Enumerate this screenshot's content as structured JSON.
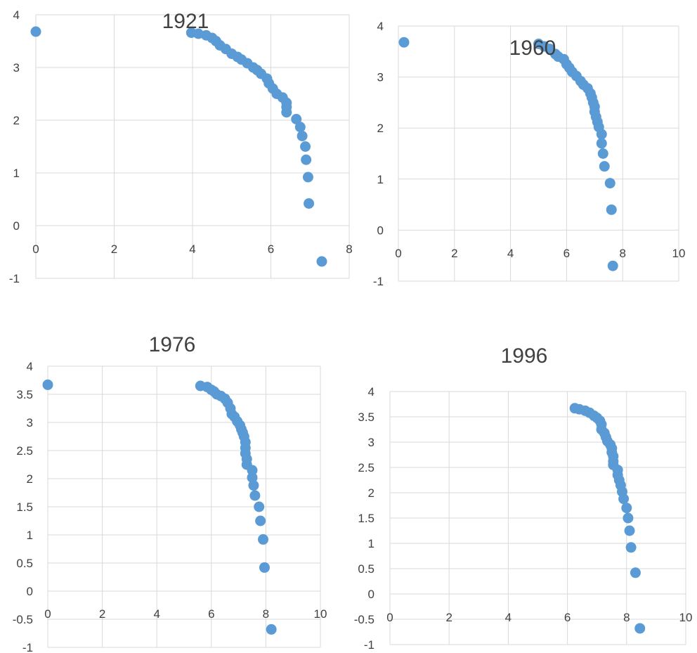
{
  "chart_data": [
    {
      "type": "scatter",
      "title": "1921",
      "xlim": [
        0,
        8
      ],
      "ylim": [
        -1,
        4
      ],
      "x_ticks": [
        "0",
        "2",
        "4",
        "6",
        "8"
      ],
      "y_ticks": [
        "-1",
        "0",
        "1",
        "2",
        "3",
        "4"
      ],
      "grid": true,
      "color": "#5b9bd5",
      "points": [
        [
          0,
          3.68
        ],
        [
          3.97,
          3.66
        ],
        [
          4.15,
          3.64
        ],
        [
          4.35,
          3.61
        ],
        [
          4.5,
          3.56
        ],
        [
          4.6,
          3.5
        ],
        [
          4.7,
          3.42
        ],
        [
          4.85,
          3.35
        ],
        [
          5.0,
          3.26
        ],
        [
          5.15,
          3.2
        ],
        [
          5.25,
          3.15
        ],
        [
          5.4,
          3.08
        ],
        [
          5.55,
          3.0
        ],
        [
          5.65,
          2.95
        ],
        [
          5.75,
          2.88
        ],
        [
          5.9,
          2.79
        ],
        [
          5.95,
          2.7
        ],
        [
          6.05,
          2.6
        ],
        [
          6.15,
          2.5
        ],
        [
          6.3,
          2.43
        ],
        [
          6.4,
          2.33
        ],
        [
          6.4,
          2.25
        ],
        [
          6.4,
          2.15
        ],
        [
          6.65,
          2.02
        ],
        [
          6.75,
          1.87
        ],
        [
          6.8,
          1.7
        ],
        [
          6.88,
          1.5
        ],
        [
          6.9,
          1.25
        ],
        [
          6.95,
          0.92
        ],
        [
          6.97,
          0.42
        ],
        [
          7.3,
          -0.68
        ]
      ]
    },
    {
      "type": "scatter",
      "title": "1960",
      "xlim": [
        0,
        10
      ],
      "ylim": [
        -1,
        4
      ],
      "x_ticks": [
        "0",
        "2",
        "4",
        "6",
        "8",
        "10"
      ],
      "y_ticks": [
        "-1",
        "0",
        "1",
        "2",
        "3",
        "4"
      ],
      "grid": true,
      "color": "#5b9bd5",
      "points": [
        [
          0.2,
          3.68
        ],
        [
          5.0,
          3.65
        ],
        [
          5.2,
          3.6
        ],
        [
          5.4,
          3.55
        ],
        [
          5.6,
          3.45
        ],
        [
          5.7,
          3.4
        ],
        [
          5.9,
          3.35
        ],
        [
          6.0,
          3.25
        ],
        [
          6.1,
          3.18
        ],
        [
          6.2,
          3.1
        ],
        [
          6.35,
          3.02
        ],
        [
          6.5,
          2.92
        ],
        [
          6.6,
          2.85
        ],
        [
          6.75,
          2.78
        ],
        [
          6.85,
          2.68
        ],
        [
          6.9,
          2.6
        ],
        [
          6.95,
          2.5
        ],
        [
          7.0,
          2.42
        ],
        [
          7.0,
          2.32
        ],
        [
          7.05,
          2.22
        ],
        [
          7.1,
          2.12
        ],
        [
          7.15,
          2.02
        ],
        [
          7.25,
          1.88
        ],
        [
          7.25,
          1.7
        ],
        [
          7.3,
          1.5
        ],
        [
          7.35,
          1.25
        ],
        [
          7.55,
          0.92
        ],
        [
          7.6,
          0.4
        ],
        [
          7.65,
          -0.7
        ]
      ]
    },
    {
      "type": "scatter",
      "title": "1976",
      "xlim": [
        0,
        10
      ],
      "ylim": [
        -1,
        4
      ],
      "x_ticks": [
        "0",
        "2",
        "4",
        "6",
        "8",
        "10"
      ],
      "y_ticks": [
        "-1",
        "-0.5",
        "0",
        "0.5",
        "1",
        "1.5",
        "2",
        "2.5",
        "3",
        "3.5",
        "4"
      ],
      "grid": true,
      "color": "#5b9bd5",
      "points": [
        [
          0,
          3.67
        ],
        [
          5.6,
          3.65
        ],
        [
          5.85,
          3.63
        ],
        [
          6.0,
          3.58
        ],
        [
          6.1,
          3.55
        ],
        [
          6.2,
          3.5
        ],
        [
          6.35,
          3.47
        ],
        [
          6.5,
          3.42
        ],
        [
          6.6,
          3.35
        ],
        [
          6.7,
          3.25
        ],
        [
          6.75,
          3.15
        ],
        [
          6.85,
          3.1
        ],
        [
          6.95,
          3.02
        ],
        [
          7.05,
          2.95
        ],
        [
          7.1,
          2.88
        ],
        [
          7.15,
          2.82
        ],
        [
          7.2,
          2.75
        ],
        [
          7.25,
          2.65
        ],
        [
          7.25,
          2.55
        ],
        [
          7.25,
          2.45
        ],
        [
          7.3,
          2.35
        ],
        [
          7.3,
          2.25
        ],
        [
          7.5,
          2.15
        ],
        [
          7.5,
          2.02
        ],
        [
          7.55,
          1.88
        ],
        [
          7.6,
          1.7
        ],
        [
          7.75,
          1.5
        ],
        [
          7.8,
          1.25
        ],
        [
          7.9,
          0.92
        ],
        [
          7.95,
          0.42
        ],
        [
          8.2,
          -0.68
        ]
      ]
    },
    {
      "type": "scatter",
      "title": "1996",
      "xlim": [
        0,
        10
      ],
      "ylim": [
        -1,
        4
      ],
      "x_ticks": [
        "0",
        "2",
        "4",
        "6",
        "8",
        "10"
      ],
      "y_ticks": [
        "-1",
        "-0.5",
        "0",
        "0.5",
        "1",
        "1.5",
        "2",
        "2.5",
        "3",
        "3.5",
        "4"
      ],
      "grid": true,
      "color": "#5b9bd5",
      "points": [
        [
          6.25,
          3.67
        ],
        [
          6.4,
          3.65
        ],
        [
          6.6,
          3.62
        ],
        [
          6.75,
          3.58
        ],
        [
          6.9,
          3.52
        ],
        [
          7.0,
          3.48
        ],
        [
          7.1,
          3.42
        ],
        [
          7.15,
          3.35
        ],
        [
          7.15,
          3.25
        ],
        [
          7.25,
          3.18
        ],
        [
          7.3,
          3.1
        ],
        [
          7.35,
          3.02
        ],
        [
          7.45,
          2.95
        ],
        [
          7.5,
          2.88
        ],
        [
          7.5,
          2.8
        ],
        [
          7.55,
          2.72
        ],
        [
          7.55,
          2.62
        ],
        [
          7.55,
          2.55
        ],
        [
          7.7,
          2.45
        ],
        [
          7.7,
          2.35
        ],
        [
          7.75,
          2.25
        ],
        [
          7.8,
          2.15
        ],
        [
          7.85,
          2.02
        ],
        [
          7.9,
          1.88
        ],
        [
          8.0,
          1.7
        ],
        [
          8.05,
          1.5
        ],
        [
          8.1,
          1.25
        ],
        [
          8.15,
          0.92
        ],
        [
          8.3,
          0.42
        ],
        [
          8.45,
          -0.68
        ]
      ]
    }
  ]
}
